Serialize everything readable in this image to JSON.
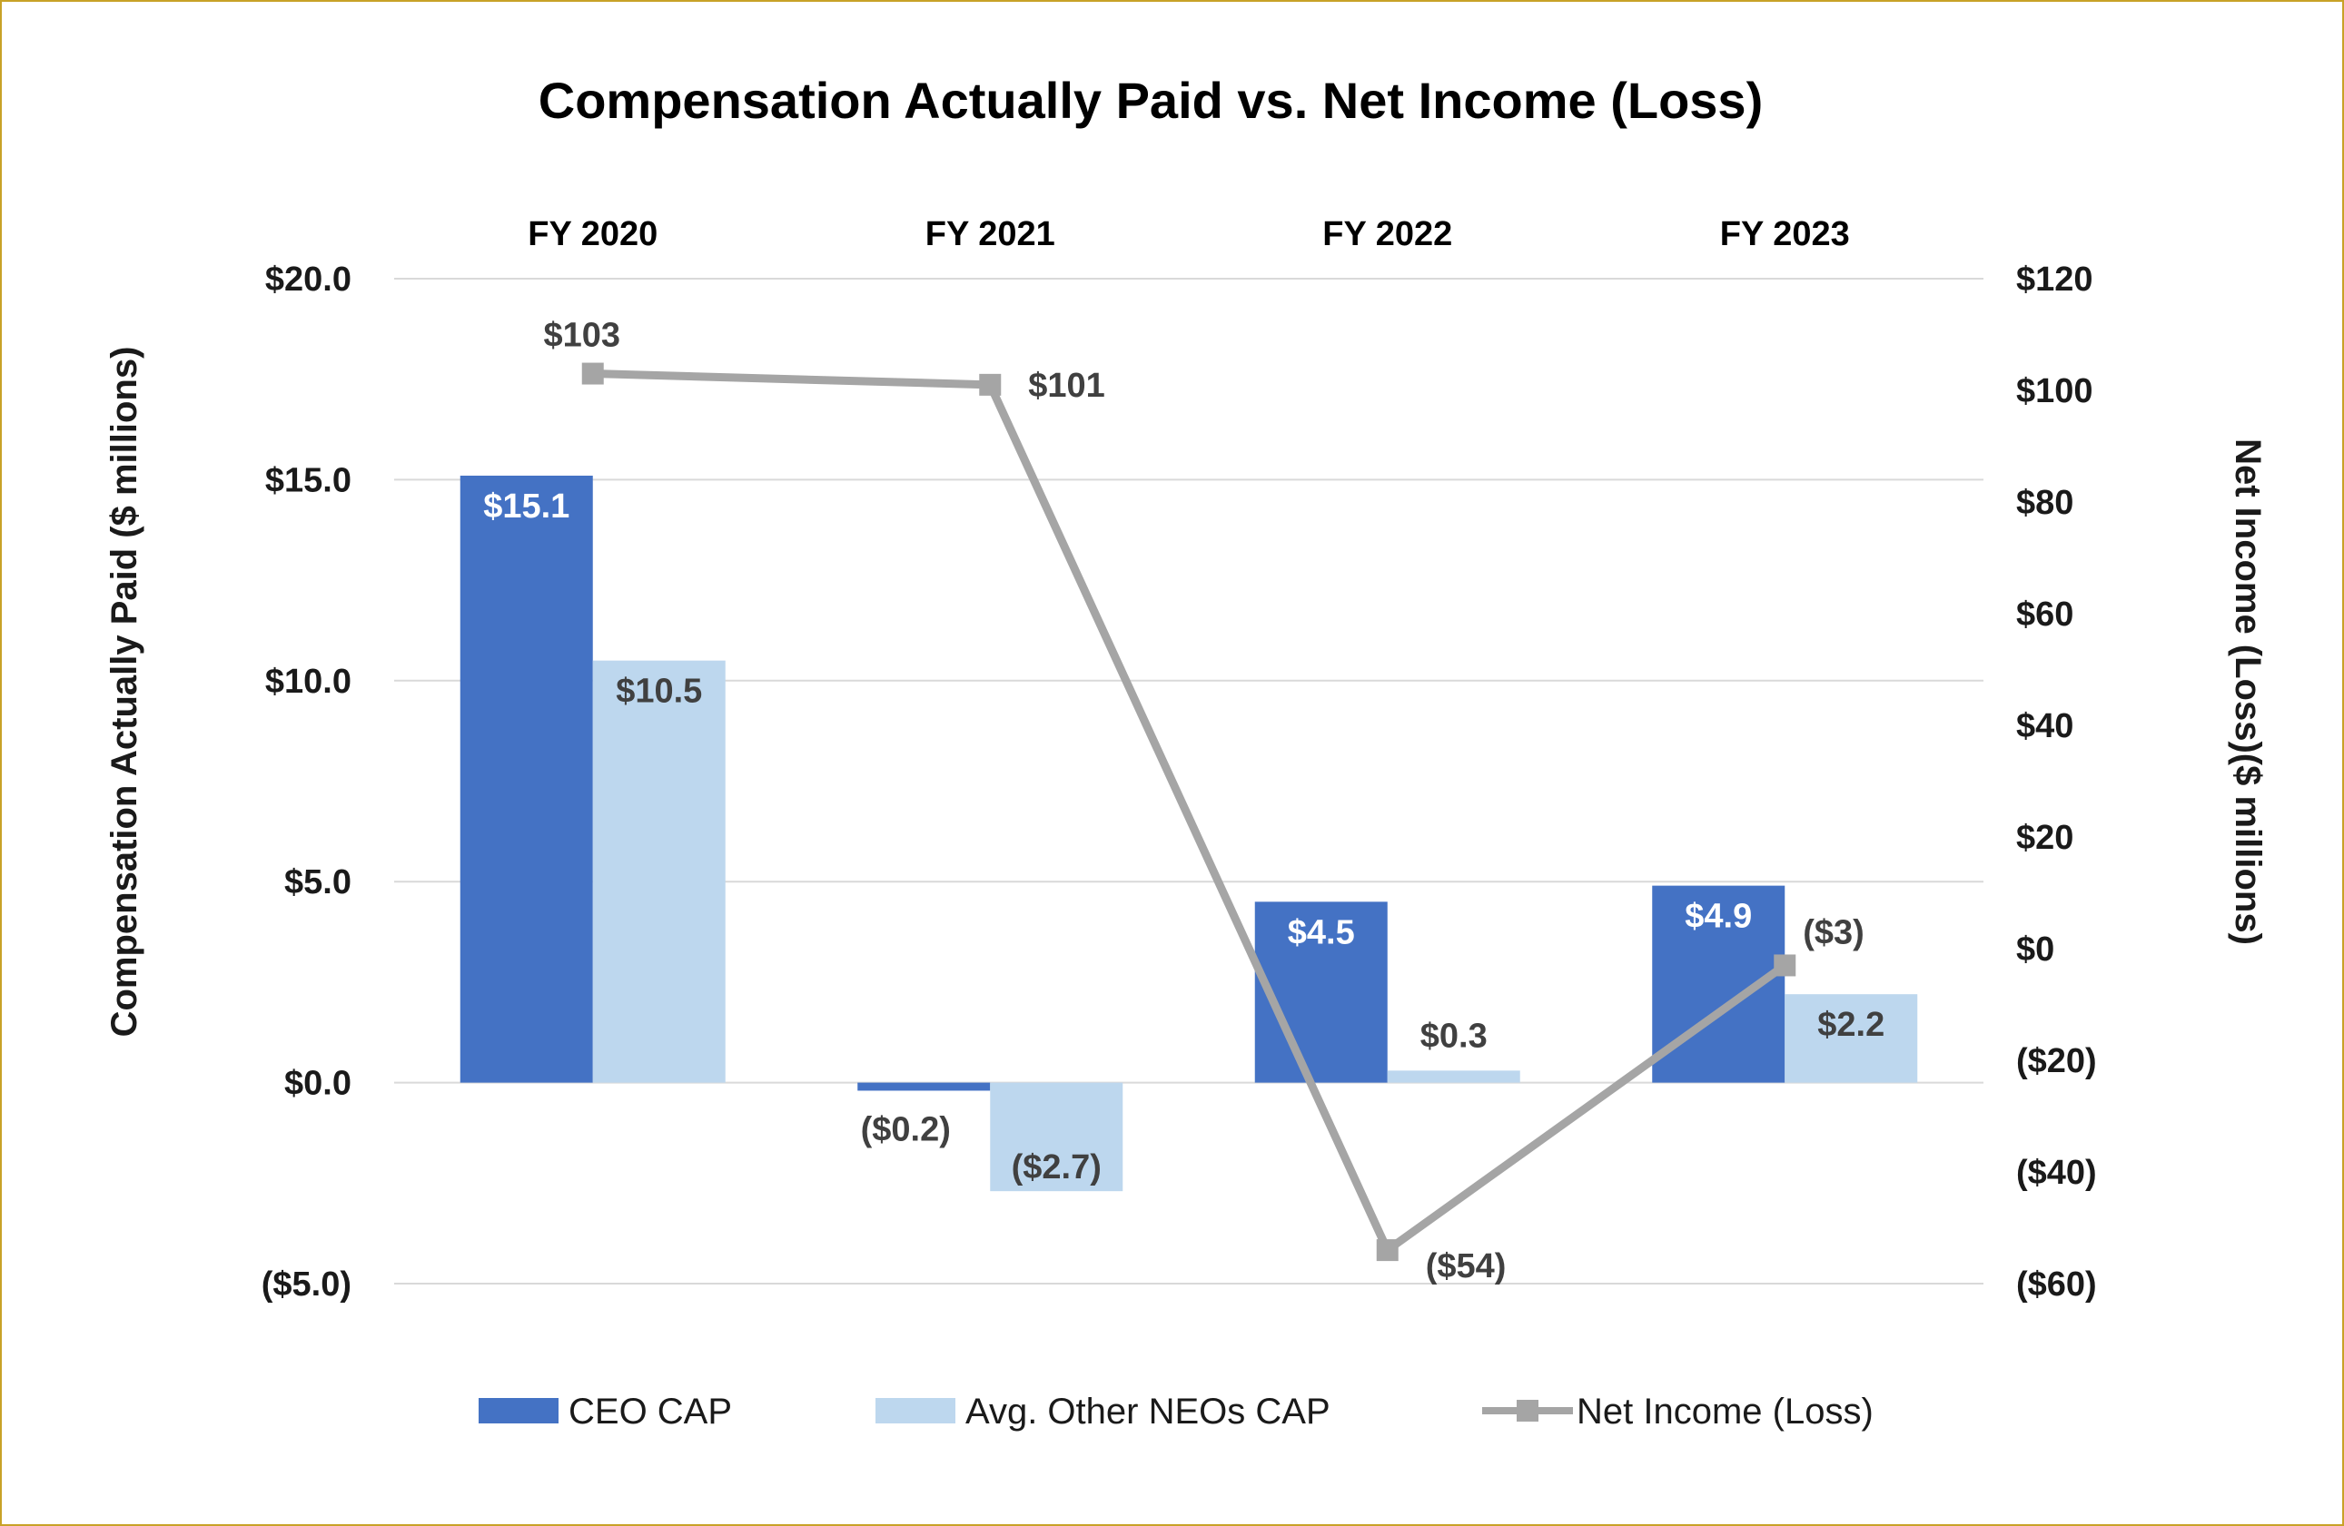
{
  "chart_data": {
    "type": "bar",
    "title": "Compensation Actually Paid vs. Net Income (Loss)",
    "categories": [
      "FY 2020",
      "FY 2021",
      "FY 2022",
      "FY 2023"
    ],
    "ylabel": "Compensation Actually Paid ($ millions)",
    "y2label": "Net Income (Loss)($ millions)",
    "ylim": [
      -5,
      20
    ],
    "y2lim": [
      -60,
      120
    ],
    "yticks": [
      20,
      15,
      10,
      5,
      0,
      -5
    ],
    "ytick_labels": [
      "$20.0",
      "$15.0",
      "$10.0",
      "$5.0",
      "$0.0",
      "($5.0)"
    ],
    "y2ticks": [
      120,
      100,
      80,
      60,
      40,
      20,
      0,
      -20,
      -40,
      -60
    ],
    "y2tick_labels": [
      "$120",
      "$100",
      "$80",
      "$60",
      "$40",
      "$20",
      "$0",
      "($20)",
      "($40)",
      "($60)"
    ],
    "grid": true,
    "legend_position": "bottom",
    "series": [
      {
        "name": "CEO CAP",
        "type": "bar",
        "axis": "left",
        "color": "#4472c4",
        "values": [
          15.1,
          -0.2,
          4.5,
          4.9
        ],
        "labels": [
          "$15.1",
          "($0.2)",
          "$4.5",
          "$4.9"
        ]
      },
      {
        "name": "Avg. Other NEOs CAP",
        "type": "bar",
        "axis": "left",
        "color": "#bdd7ee",
        "values": [
          10.5,
          -2.7,
          0.3,
          2.2
        ],
        "labels": [
          "$10.5",
          "($2.7)",
          "$0.3",
          "$2.2"
        ]
      },
      {
        "name": "Net Income (Loss)",
        "type": "line",
        "axis": "right",
        "color": "#a5a5a5",
        "marker": "square",
        "values": [
          103,
          101,
          -54,
          -3
        ],
        "labels": [
          "$103",
          "$101",
          "($54)",
          "($3)"
        ]
      }
    ]
  }
}
